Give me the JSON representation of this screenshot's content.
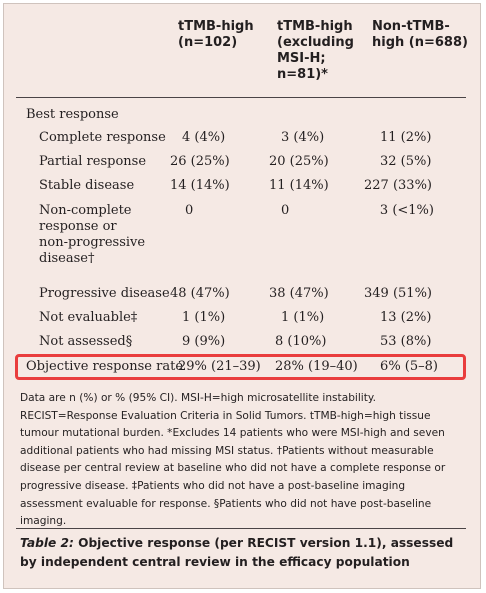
{
  "columns": [
    {
      "key": "c1",
      "label": "tTMB-high\n(n=102)"
    },
    {
      "key": "c2",
      "label": "tTMB-high\n(excluding\nMSI-H;\nn=81)*"
    },
    {
      "key": "c3",
      "label": "Non-tTMB-\nhigh (n=688)"
    }
  ],
  "section_label": "Best response",
  "rows": [
    {
      "label": "Complete response",
      "c1": "4 (4%)",
      "c2": "3 (4%)",
      "c3": "11 (2%)"
    },
    {
      "label": "Partial response",
      "c1": "26 (25%)",
      "c2": "20 (25%)",
      "c3": "32 (5%)"
    },
    {
      "label": "Stable disease",
      "c1": "14 (14%)",
      "c2": "11 (14%)",
      "c3": "227 (33%)"
    },
    {
      "label": "Non-complete\nresponse or\nnon-progressive\ndisease†",
      "c1": "0",
      "c2": "0",
      "c3": "3 (<1%)"
    },
    {
      "label": "Progressive disease",
      "c1": "48 (47%)",
      "c2": "38 (47%)",
      "c3": "349 (51%)"
    },
    {
      "label": "Not evaluable‡",
      "c1": "1 (1%)",
      "c2": "1 (1%)",
      "c3": "13 (2%)"
    },
    {
      "label": "Not assessed§",
      "c1": "9 (9%)",
      "c2": "8 (10%)",
      "c3": "53 (8%)"
    }
  ],
  "orr_row": {
    "label": "Objective response rate",
    "c1": "29% (21–39)",
    "c2": "28% (19–40)",
    "c3": "6% (5–8)"
  },
  "footnotes": "Data are n (%) or % (95% CI). MSI-H=high microsatellite instability. RECIST=Response Evaluation Criteria in Solid Tumors. tTMB-high=high tissue tumour mutational burden. *Excludes 14 patients who were MSI-high and seven additional patients who had missing MSI status. †Patients without measurable disease per central review at baseline who did not have a complete response or progressive disease. ‡Patients who did not have a post-baseline imaging assessment evaluable for response. §Patients who did not have post-baseline imaging.",
  "caption": {
    "prefix": "Table 2:",
    "text": " Objective response (per RECIST version 1.1), assessed by independent central review in the efficacy population"
  },
  "colors": {
    "background": "#f5e9e4",
    "highlight": "#e93d3d",
    "text": "#231f20"
  }
}
